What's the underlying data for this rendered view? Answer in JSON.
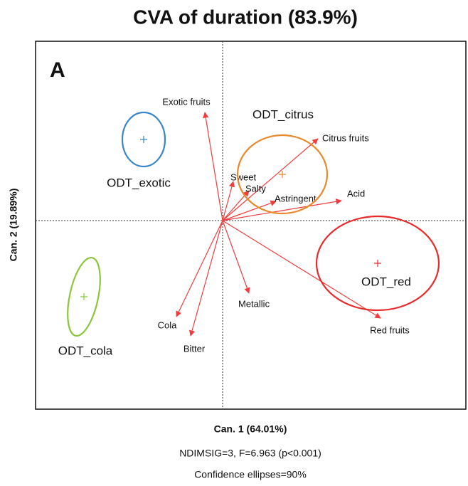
{
  "chart_data": {
    "type": "biplot",
    "title": "CVA of duration (83.9%)",
    "panel_label": "A",
    "xlabel": "Can. 1 (64.01%)",
    "ylabel": "Can. 2 (19.89%)",
    "notes": [
      "NDIMSIG=3, F=6.963 (p<0.001)",
      "Confidence ellipses=90%"
    ],
    "xlim": [
      -2.63,
      3.42
    ],
    "ylim": [
      -2.65,
      2.52
    ],
    "vector_color": "#f03c3c",
    "vectors": [
      {
        "name": "Exotic fruits",
        "x": -0.25,
        "y": 1.52
      },
      {
        "name": "Citrus fruits",
        "x": 1.34,
        "y": 1.15
      },
      {
        "name": "Sweet",
        "x": 0.15,
        "y": 0.55
      },
      {
        "name": "Salty",
        "x": 0.37,
        "y": 0.42
      },
      {
        "name": "Astringent",
        "x": 0.75,
        "y": 0.27
      },
      {
        "name": "Acid",
        "x": 1.67,
        "y": 0.28
      },
      {
        "name": "Metallic",
        "x": 0.37,
        "y": -1.02
      },
      {
        "name": "Red fruits",
        "x": 2.22,
        "y": -1.37
      },
      {
        "name": "Cola",
        "x": -0.65,
        "y": -1.35
      },
      {
        "name": "Bitter",
        "x": -0.45,
        "y": -1.62
      }
    ],
    "groups": [
      {
        "name": "ODT_exotic",
        "color": "#3a86c8",
        "x": -1.11,
        "y": 1.14,
        "rx": 0.3,
        "ry": 0.38,
        "angle": 0
      },
      {
        "name": "ODT_citrus",
        "color": "#e8892b",
        "x": 0.84,
        "y": 0.65,
        "rx": 0.63,
        "ry": 0.55,
        "angle": 0
      },
      {
        "name": "ODT_red",
        "color": "#e82a2a",
        "x": 2.18,
        "y": -0.6,
        "rx": 0.86,
        "ry": 0.66,
        "angle": 0
      },
      {
        "name": "ODT_cola",
        "color": "#8cc63f",
        "x": -1.95,
        "y": -1.07,
        "rx": 0.2,
        "ry": 0.56,
        "angle": 12
      }
    ]
  }
}
